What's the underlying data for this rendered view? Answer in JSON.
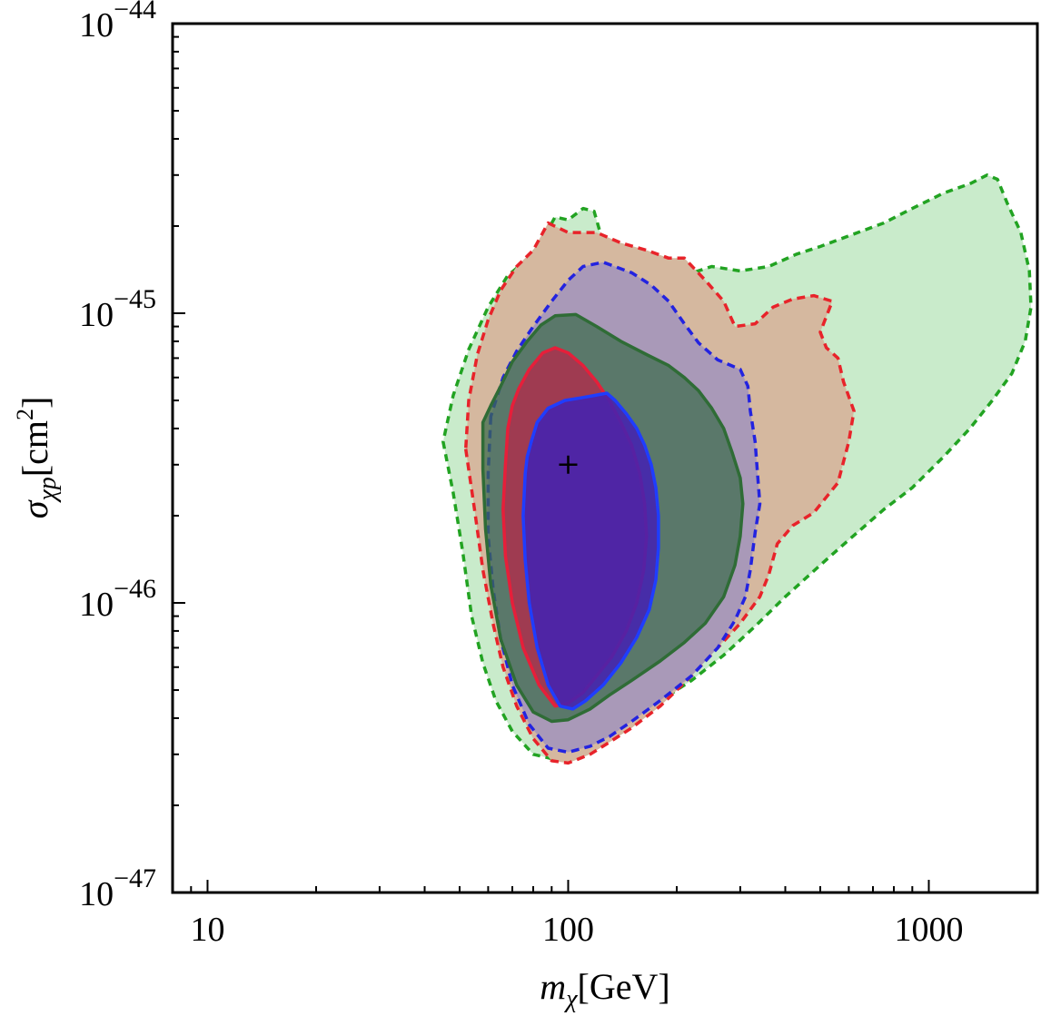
{
  "chart_data": {
    "type": "contour",
    "title": "",
    "xscale": "log",
    "yscale": "log",
    "xlim": [
      8,
      2000
    ],
    "ylim": [
      1e-47,
      1e-44
    ],
    "xlabel": {
      "symbol": "m",
      "sub": "χ",
      "unit": "[GeV]"
    },
    "ylabel": {
      "symbol": "σ",
      "sub": "χp",
      "unit_pre": "[cm",
      "unit_sup": "2",
      "unit_post": "]"
    },
    "x_ticks": [
      {
        "value": 10,
        "label": "10"
      },
      {
        "value": 100,
        "label": "100"
      },
      {
        "value": 1000,
        "label": "1000"
      }
    ],
    "y_ticks": [
      {
        "value": 1e-47,
        "base": "10",
        "exp": "−47"
      },
      {
        "value": 1e-46,
        "base": "10",
        "exp": "−46"
      },
      {
        "value": 1e-45,
        "base": "10",
        "exp": "−45"
      },
      {
        "value": 1e-44,
        "base": "10",
        "exp": "−44"
      }
    ],
    "benchmark": {
      "x": 100,
      "y": 3e-46,
      "marker": "+"
    },
    "regions": [
      {
        "name": "green-dashed-region",
        "fill": "#c9ebcb",
        "fillOpacity": 1,
        "stroke": "#22a322",
        "dash": "8,6",
        "points": [
          [
            45,
            3.6e-46
          ],
          [
            48,
            2.4e-46
          ],
          [
            51,
            1.5e-46
          ],
          [
            54,
            9e-47
          ],
          [
            58,
            6.2e-47
          ],
          [
            63,
            4.6e-47
          ],
          [
            70,
            3.6e-47
          ],
          [
            80,
            3e-47
          ],
          [
            90,
            2.9e-47
          ],
          [
            100,
            3e-47
          ],
          [
            115,
            3.4e-47
          ],
          [
            130,
            3.7e-47
          ],
          [
            150,
            4e-47
          ],
          [
            180,
            4.6e-47
          ],
          [
            220,
            5.4e-47
          ],
          [
            270,
            6.6e-47
          ],
          [
            330,
            8.3e-47
          ],
          [
            400,
            1.05e-46
          ],
          [
            500,
            1.35e-46
          ],
          [
            600,
            1.65e-46
          ],
          [
            750,
            2.1e-46
          ],
          [
            900,
            2.5e-46
          ],
          [
            1100,
            3.2e-46
          ],
          [
            1300,
            4e-46
          ],
          [
            1500,
            5e-46
          ],
          [
            1700,
            6.2e-46
          ],
          [
            1850,
            8e-46
          ],
          [
            1920,
            1.05e-45
          ],
          [
            1900,
            1.4e-45
          ],
          [
            1800,
            1.9e-45
          ],
          [
            1650,
            2.4e-45
          ],
          [
            1550,
            2.9e-45
          ],
          [
            1450,
            3e-45
          ],
          [
            1300,
            2.8e-45
          ],
          [
            1100,
            2.6e-45
          ],
          [
            900,
            2.3e-45
          ],
          [
            750,
            2.05e-45
          ],
          [
            600,
            1.85e-45
          ],
          [
            500,
            1.7e-45
          ],
          [
            430,
            1.6e-45
          ],
          [
            360,
            1.45e-45
          ],
          [
            300,
            1.4e-45
          ],
          [
            250,
            1.45e-45
          ],
          [
            210,
            1.35e-45
          ],
          [
            170,
            1.45e-45
          ],
          [
            140,
            1.45e-45
          ],
          [
            125,
            1.75e-45
          ],
          [
            118,
            2.25e-45
          ],
          [
            110,
            2.3e-45
          ],
          [
            100,
            2.1e-45
          ],
          [
            92,
            2.15e-45
          ],
          [
            85,
            1.8e-45
          ],
          [
            78,
            1.55e-45
          ],
          [
            68,
            1.35e-45
          ],
          [
            60,
            1.05e-45
          ],
          [
            53,
            7.5e-46
          ],
          [
            48,
            5.2e-46
          ]
        ]
      },
      {
        "name": "red-dashed-region",
        "fill": "#d5b89f",
        "fillOpacity": 1,
        "stroke": "#e8232a",
        "dash": "9,6",
        "points": [
          [
            52,
            3.4e-46
          ],
          [
            55,
            2.1e-46
          ],
          [
            58,
            1.3e-46
          ],
          [
            62,
            8.4e-47
          ],
          [
            66,
            6e-47
          ],
          [
            72,
            4.4e-47
          ],
          [
            80,
            3.4e-47
          ],
          [
            90,
            2.85e-47
          ],
          [
            100,
            2.8e-47
          ],
          [
            115,
            3e-47
          ],
          [
            130,
            3.3e-47
          ],
          [
            150,
            3.7e-47
          ],
          [
            180,
            4.4e-47
          ],
          [
            220,
            5.6e-47
          ],
          [
            260,
            7e-47
          ],
          [
            300,
            8.5e-47
          ],
          [
            340,
            1.05e-46
          ],
          [
            360,
            1.25e-46
          ],
          [
            380,
            1.6e-46
          ],
          [
            420,
            1.85e-46
          ],
          [
            480,
            2.05e-46
          ],
          [
            560,
            2.6e-46
          ],
          [
            600,
            3.6e-46
          ],
          [
            620,
            4.6e-46
          ],
          [
            580,
            5.8e-46
          ],
          [
            560,
            7e-46
          ],
          [
            520,
            7.6e-46
          ],
          [
            500,
            8.6e-46
          ],
          [
            540,
            1.1e-45
          ],
          [
            480,
            1.15e-45
          ],
          [
            420,
            1.12e-45
          ],
          [
            370,
            1.05e-45
          ],
          [
            330,
            9.2e-46
          ],
          [
            290,
            9e-46
          ],
          [
            270,
            1.1e-45
          ],
          [
            240,
            1.3e-45
          ],
          [
            210,
            1.55e-45
          ],
          [
            190,
            1.55e-45
          ],
          [
            165,
            1.65e-45
          ],
          [
            140,
            1.75e-45
          ],
          [
            120,
            1.9e-45
          ],
          [
            100,
            1.9e-45
          ],
          [
            88,
            2.05e-45
          ],
          [
            80,
            1.65e-45
          ],
          [
            72,
            1.45e-45
          ],
          [
            65,
            1.2e-45
          ],
          [
            60,
            9.5e-46
          ],
          [
            56,
            7.2e-46
          ],
          [
            53,
            5e-46
          ]
        ]
      },
      {
        "name": "blue-dashed-region",
        "fill": "#a999b8",
        "fillOpacity": 1,
        "stroke": "#2323e0",
        "dash": "9,6",
        "points": [
          [
            61,
            4.4e-46
          ],
          [
            60,
            2.8e-46
          ],
          [
            60,
            1.7e-46
          ],
          [
            62,
            1.1e-46
          ],
          [
            65,
            7.5e-47
          ],
          [
            70,
            5.2e-47
          ],
          [
            78,
            3.8e-47
          ],
          [
            88,
            3.15e-47
          ],
          [
            100,
            3.05e-47
          ],
          [
            115,
            3.2e-47
          ],
          [
            130,
            3.45e-47
          ],
          [
            150,
            3.9e-47
          ],
          [
            180,
            4.6e-47
          ],
          [
            220,
            5.6e-47
          ],
          [
            260,
            7e-47
          ],
          [
            290,
            8.7e-47
          ],
          [
            310,
            1.05e-46
          ],
          [
            320,
            1.3e-46
          ],
          [
            330,
            1.75e-46
          ],
          [
            340,
            2.2e-46
          ],
          [
            335,
            2.8e-46
          ],
          [
            330,
            3.6e-46
          ],
          [
            320,
            4.6e-46
          ],
          [
            315,
            5.6e-46
          ],
          [
            300,
            6.4e-46
          ],
          [
            260,
            6.9e-46
          ],
          [
            230,
            7.9e-46
          ],
          [
            210,
            9.2e-46
          ],
          [
            190,
            1.1e-45
          ],
          [
            170,
            1.25e-45
          ],
          [
            150,
            1.38e-45
          ],
          [
            125,
            1.5e-45
          ],
          [
            110,
            1.45e-45
          ],
          [
            100,
            1.3e-45
          ],
          [
            90,
            1.1e-45
          ],
          [
            80,
            9e-46
          ],
          [
            72,
            7.4e-46
          ],
          [
            66,
            6e-46
          ]
        ]
      },
      {
        "name": "green-solid-region",
        "fill": "#3c6b4c",
        "fillOpacity": 0.72,
        "stroke": "#2f6c36",
        "dash": "",
        "points": [
          [
            58,
            4.2e-46
          ],
          [
            58,
            2.9e-46
          ],
          [
            59,
            1.8e-46
          ],
          [
            61,
            1.15e-46
          ],
          [
            65,
            7.5e-47
          ],
          [
            72,
            5.2e-47
          ],
          [
            80,
            4.2e-47
          ],
          [
            90,
            3.9e-47
          ],
          [
            100,
            3.95e-47
          ],
          [
            115,
            4.3e-47
          ],
          [
            130,
            4.8e-47
          ],
          [
            150,
            5.4e-47
          ],
          [
            180,
            6.3e-47
          ],
          [
            210,
            7.3e-47
          ],
          [
            240,
            8.5e-47
          ],
          [
            270,
            1.05e-46
          ],
          [
            290,
            1.35e-46
          ],
          [
            300,
            1.7e-46
          ],
          [
            305,
            2.2e-46
          ],
          [
            300,
            2.7e-46
          ],
          [
            285,
            3.3e-46
          ],
          [
            270,
            4e-46
          ],
          [
            250,
            4.7e-46
          ],
          [
            230,
            5.4e-46
          ],
          [
            210,
            6e-46
          ],
          [
            190,
            6.6e-46
          ],
          [
            165,
            7.2e-46
          ],
          [
            140,
            8e-46
          ],
          [
            120,
            9e-46
          ],
          [
            105,
            9.9e-46
          ],
          [
            92,
            9.8e-46
          ],
          [
            84,
            9.1e-46
          ],
          [
            77,
            8e-46
          ],
          [
            70,
            6.8e-46
          ],
          [
            65,
            5.6e-46
          ],
          [
            61,
            4.8e-46
          ]
        ]
      },
      {
        "name": "red-solid-region",
        "fill": "#b22a4a",
        "fillOpacity": 0.78,
        "stroke": "#e61f3a",
        "dash": "",
        "points": [
          [
            68,
            4e-46
          ],
          [
            67,
            3e-46
          ],
          [
            66,
            2.1e-46
          ],
          [
            67,
            1.45e-46
          ],
          [
            70,
            1e-46
          ],
          [
            75,
            7e-47
          ],
          [
            83,
            5.2e-47
          ],
          [
            92,
            4.4e-47
          ],
          [
            100,
            4.5e-47
          ],
          [
            110,
            4.9e-47
          ],
          [
            120,
            5.6e-47
          ],
          [
            132,
            6.5e-47
          ],
          [
            145,
            8e-47
          ],
          [
            155,
            1e-46
          ],
          [
            162,
            1.3e-46
          ],
          [
            165,
            1.7e-46
          ],
          [
            163,
            2.2e-46
          ],
          [
            158,
            2.8e-46
          ],
          [
            150,
            3.5e-46
          ],
          [
            140,
            4.2e-46
          ],
          [
            130,
            5e-46
          ],
          [
            120,
            5.8e-46
          ],
          [
            110,
            6.6e-46
          ],
          [
            100,
            7.3e-46
          ],
          [
            92,
            7.6e-46
          ],
          [
            85,
            7.3e-46
          ],
          [
            78,
            6.4e-46
          ],
          [
            73,
            5.5e-46
          ],
          [
            70,
            4.8e-46
          ]
        ]
      },
      {
        "name": "blue-solid-region",
        "fill": "#4422b0",
        "fillOpacity": 0.88,
        "stroke": "#1f3dff",
        "dash": "",
        "points": [
          [
            76,
            2.8e-46
          ],
          [
            75,
            2e-46
          ],
          [
            76,
            1.4e-46
          ],
          [
            78,
            1e-46
          ],
          [
            82,
            7e-47
          ],
          [
            88,
            5.2e-47
          ],
          [
            95,
            4.4e-47
          ],
          [
            103,
            4.3e-47
          ],
          [
            112,
            4.6e-47
          ],
          [
            125,
            5.2e-47
          ],
          [
            140,
            6.2e-47
          ],
          [
            155,
            7.6e-47
          ],
          [
            168,
            9.5e-47
          ],
          [
            175,
            1.2e-46
          ],
          [
            178,
            1.55e-46
          ],
          [
            178,
            2e-46
          ],
          [
            175,
            2.5e-46
          ],
          [
            170,
            3e-46
          ],
          [
            163,
            3.5e-46
          ],
          [
            155,
            4e-46
          ],
          [
            145,
            4.5e-46
          ],
          [
            135,
            5e-46
          ],
          [
            128,
            5.3e-46
          ],
          [
            118,
            5.2e-46
          ],
          [
            108,
            5.1e-46
          ],
          [
            98,
            5e-46
          ],
          [
            88,
            4.7e-46
          ],
          [
            82,
            4.2e-46
          ],
          [
            79,
            3.6e-46
          ],
          [
            77,
            3.2e-46
          ]
        ]
      }
    ]
  }
}
